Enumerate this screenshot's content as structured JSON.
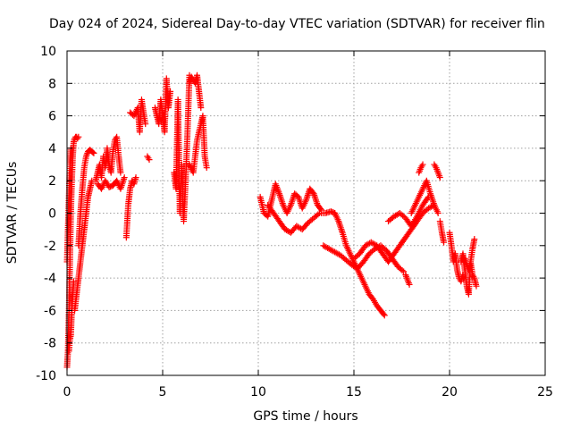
{
  "chart_data": {
    "type": "scatter",
    "title": "Day 024 of 2024, Sidereal Day-to-day VTEC variation (SDTVAR) for receiver flin",
    "xlabel": "GPS time / hours",
    "ylabel": "SDTVAR / TECUs",
    "xlim": [
      0,
      25
    ],
    "ylim": [
      -10,
      10
    ],
    "xticks": [
      0,
      5,
      10,
      15,
      20,
      25
    ],
    "yticks": [
      -10,
      -8,
      -6,
      -4,
      -2,
      0,
      2,
      4,
      6,
      8,
      10
    ],
    "grid": true,
    "marker": "+",
    "color": "#ff0000",
    "series": [
      {
        "name": "SDTVAR",
        "segments": [
          {
            "x": [
              0.0,
              0.05,
              0.1,
              0.15,
              0.2,
              0.25,
              0.3,
              0.35
            ],
            "y": [
              -9.5,
              -8.5,
              -6.0,
              -3.0,
              0.0,
              2.0,
              3.5,
              4.4
            ]
          },
          {
            "x": [
              0.0,
              0.05,
              0.1,
              0.15,
              0.2
            ],
            "y": [
              -3.0,
              -1.0,
              1.0,
              3.0,
              4.0
            ]
          },
          {
            "x": [
              0.35,
              0.4,
              0.45,
              0.5,
              0.55,
              0.6
            ],
            "y": [
              4.4,
              4.6,
              4.7,
              4.7,
              4.6,
              4.7
            ]
          },
          {
            "x": [
              0.1,
              0.15,
              0.2,
              0.25,
              0.3,
              0.35
            ],
            "y": [
              -8.5,
              -7.8,
              -7.5,
              -6.0,
              -5.0,
              -4.2
            ]
          },
          {
            "x": [
              0.4,
              0.5,
              0.6,
              0.7,
              0.8,
              0.9,
              1.0,
              1.1,
              1.2,
              1.3
            ],
            "y": [
              -6.0,
              -5.0,
              -4.0,
              -3.0,
              -2.0,
              -1.0,
              0.0,
              1.0,
              1.5,
              2.0
            ]
          },
          {
            "x": [
              0.6,
              0.7,
              0.8,
              0.9,
              1.0,
              1.1,
              1.2,
              1.3,
              1.4
            ],
            "y": [
              -2.0,
              0.0,
              1.5,
              2.8,
              3.5,
              3.8,
              3.9,
              3.8,
              3.7
            ]
          },
          {
            "x": [
              1.5,
              1.6,
              1.7,
              1.8,
              1.9,
              2.0,
              2.1,
              2.2,
              2.3,
              2.4,
              2.5,
              2.6,
              2.7,
              2.8
            ],
            "y": [
              2.0,
              2.5,
              3.0,
              2.2,
              3.5,
              2.8,
              4.0,
              3.0,
              2.5,
              3.8,
              4.5,
              4.7,
              3.5,
              2.5
            ]
          },
          {
            "x": [
              1.6,
              1.8,
              2.0,
              2.2,
              2.4,
              2.6,
              2.8,
              3.0
            ],
            "y": [
              1.8,
              1.5,
              2.0,
              1.6,
              1.7,
              2.0,
              1.5,
              2.2
            ]
          },
          {
            "x": [
              3.1,
              3.2,
              3.3,
              3.4,
              3.5,
              3.6
            ],
            "y": [
              -1.5,
              0.5,
              1.5,
              2.0,
              1.8,
              2.2
            ]
          },
          {
            "x": [
              3.3,
              3.5,
              3.7,
              3.8,
              3.9,
              4.0,
              4.1
            ],
            "y": [
              6.2,
              6.0,
              6.5,
              5.0,
              7.0,
              6.2,
              5.5
            ]
          },
          {
            "x": [
              4.2,
              4.3
            ],
            "y": [
              3.5,
              3.3
            ]
          },
          {
            "x": [
              4.6,
              4.7,
              4.8,
              4.9,
              5.0,
              5.1,
              5.2,
              5.3,
              5.4
            ],
            "y": [
              6.5,
              6.0,
              5.5,
              7.0,
              6.0,
              5.0,
              8.3,
              6.5,
              7.5
            ]
          },
          {
            "x": [
              5.6,
              5.7,
              5.8,
              5.9,
              6.0,
              6.1,
              6.2,
              6.3,
              6.4
            ],
            "y": [
              2.5,
              1.5,
              7.0,
              0.0,
              3.0,
              -0.5,
              2.0,
              5.0,
              8.5
            ]
          },
          {
            "x": [
              6.4,
              6.5,
              6.6,
              6.7,
              6.8,
              6.9,
              7.0
            ],
            "y": [
              8.0,
              8.4,
              8.2,
              8.0,
              8.5,
              7.5,
              6.5
            ]
          },
          {
            "x": [
              6.4,
              6.6,
              6.8,
              7.0,
              7.1,
              7.2,
              7.3
            ],
            "y": [
              3.0,
              2.5,
              4.5,
              5.5,
              6.0,
              3.5,
              2.8
            ]
          },
          {
            "x": [
              10.1,
              10.3,
              10.5,
              10.7,
              10.9,
              11.1,
              11.3,
              11.5,
              11.7,
              11.9,
              12.1,
              12.3,
              12.5,
              12.7,
              12.9,
              13.1,
              13.3
            ],
            "y": [
              1.0,
              0.0,
              -0.2,
              0.8,
              1.8,
              1.2,
              0.5,
              0.0,
              0.5,
              1.2,
              1.0,
              0.3,
              0.8,
              1.5,
              1.2,
              0.5,
              0.2
            ]
          },
          {
            "x": [
              10.5,
              10.8,
              11.1,
              11.4,
              11.7,
              12.0,
              12.3,
              12.6,
              12.9,
              13.2,
              13.5,
              13.8,
              14.0
            ],
            "y": [
              0.5,
              0.0,
              -0.5,
              -1.0,
              -1.2,
              -0.8,
              -1.0,
              -0.6,
              -0.3,
              0.0,
              0.0,
              0.1,
              0.0
            ]
          },
          {
            "x": [
              14.0,
              14.2,
              14.4,
              14.6,
              14.8,
              15.0,
              15.2,
              15.4,
              15.6,
              15.8,
              16.0,
              16.2,
              16.4,
              16.6
            ],
            "y": [
              0.0,
              -0.5,
              -1.2,
              -2.0,
              -2.5,
              -3.0,
              -3.5,
              -4.0,
              -4.5,
              -5.0,
              -5.3,
              -5.7,
              -6.0,
              -6.3
            ]
          },
          {
            "x": [
              13.4,
              13.7,
              14.0,
              14.3,
              14.6,
              14.9,
              15.2,
              15.5,
              15.8,
              16.1,
              16.4,
              16.7,
              17.0,
              17.3,
              17.6
            ],
            "y": [
              -2.0,
              -2.2,
              -2.4,
              -2.6,
              -2.9,
              -3.2,
              -3.4,
              -3.0,
              -2.5,
              -2.2,
              -2.0,
              -2.3,
              -2.8,
              -3.3,
              -3.6
            ]
          },
          {
            "x": [
              15.0,
              15.3,
              15.6,
              15.9,
              16.2,
              16.5,
              16.8,
              17.1,
              17.4,
              17.7,
              18.0,
              18.3,
              18.6,
              18.9,
              19.2
            ],
            "y": [
              -2.8,
              -2.5,
              -2.0,
              -1.8,
              -2.0,
              -2.5,
              -3.0,
              -2.5,
              -2.0,
              -1.5,
              -1.0,
              -0.5,
              0.0,
              0.3,
              0.5
            ]
          },
          {
            "x": [
              17.7,
              17.8,
              17.9
            ],
            "y": [
              -3.8,
              -4.1,
              -4.4
            ]
          },
          {
            "x": [
              16.8,
              17.1,
              17.4,
              17.7,
              18.0,
              18.3,
              18.6,
              18.9
            ],
            "y": [
              -0.5,
              -0.2,
              0.0,
              -0.3,
              -0.8,
              -0.2,
              0.5,
              1.0
            ]
          },
          {
            "x": [
              18.0,
              18.2,
              18.4,
              18.6,
              18.8,
              19.0,
              19.2,
              19.4
            ],
            "y": [
              0.0,
              0.5,
              1.0,
              1.5,
              2.0,
              1.2,
              0.5,
              0.0
            ]
          },
          {
            "x": [
              18.4,
              18.5,
              18.6
            ],
            "y": [
              2.5,
              2.8,
              3.0
            ]
          },
          {
            "x": [
              19.2,
              19.3,
              19.4,
              19.5
            ],
            "y": [
              3.0,
              2.8,
              2.5,
              2.2
            ]
          },
          {
            "x": [
              19.5,
              19.6,
              19.7
            ],
            "y": [
              -0.5,
              -1.2,
              -1.8
            ]
          },
          {
            "x": [
              20.0,
              20.1,
              20.2,
              20.3,
              20.4,
              20.5,
              20.6,
              20.7
            ],
            "y": [
              -1.2,
              -2.0,
              -3.0,
              -2.5,
              -3.5,
              -4.0,
              -4.2,
              -3.8
            ]
          },
          {
            "x": [
              20.6,
              20.7,
              20.8,
              20.9,
              21.0,
              21.1,
              21.2,
              21.3
            ],
            "y": [
              -3.0,
              -2.5,
              -3.5,
              -4.5,
              -5.0,
              -3.0,
              -2.2,
              -1.6
            ]
          },
          {
            "x": [
              20.8,
              20.9,
              21.0,
              21.1,
              21.2,
              21.3,
              21.4
            ],
            "y": [
              -2.8,
              -3.2,
              -3.5,
              -3.0,
              -3.8,
              -4.0,
              -4.5
            ]
          }
        ]
      }
    ]
  }
}
